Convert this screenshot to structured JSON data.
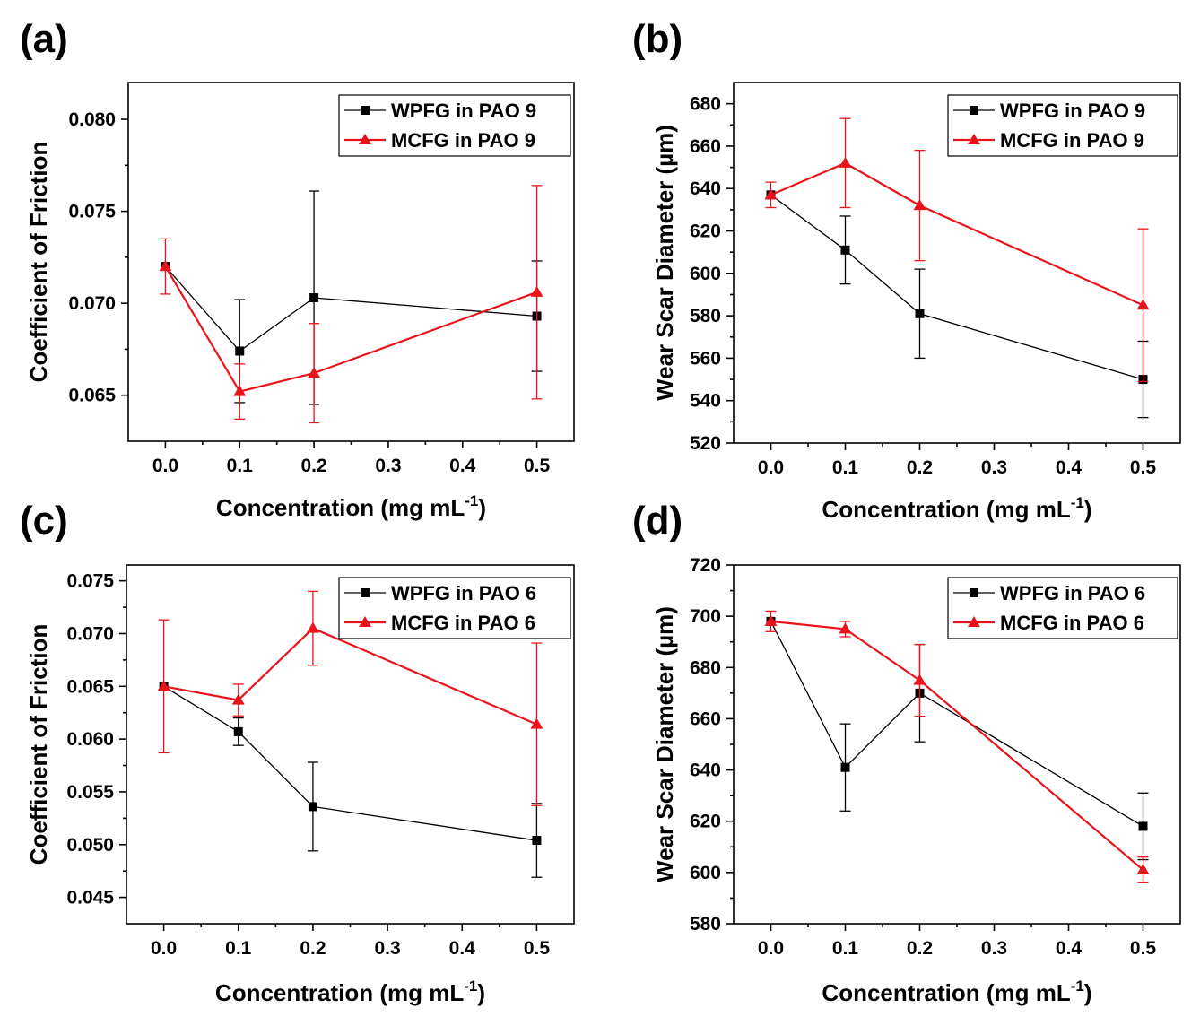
{
  "chart_data": [
    {
      "type": "line",
      "panel": "(a)",
      "xlabel": "Concentration (mg mL",
      "xlabel_sup": "-1",
      "xlabel_close": ")",
      "ylabel": "Coefficient of Friction",
      "xlim": [
        -0.05,
        0.55
      ],
      "ylim": [
        0.0625,
        0.082
      ],
      "xticks": [
        0.0,
        0.1,
        0.2,
        0.3,
        0.4,
        0.5
      ],
      "xtick_labels": [
        "0.0",
        "0.1",
        "0.2",
        "0.3",
        "0.4",
        "0.5"
      ],
      "yticks": [
        0.065,
        0.07,
        0.075,
        0.08
      ],
      "ytick_labels": [
        "0.065",
        "0.070",
        "0.075",
        "0.080"
      ],
      "legend_position": "top-right",
      "series": [
        {
          "name": "WPFG in PAO 9",
          "color": "#000000",
          "marker": "square",
          "x": [
            0.0,
            0.1,
            0.2,
            0.5
          ],
          "y": [
            0.072,
            0.0674,
            0.0703,
            0.0693
          ],
          "err": [
            0.0,
            0.0028,
            0.0058,
            0.003
          ]
        },
        {
          "name": "MCFG in PAO 9",
          "color": "#e8141b",
          "marker": "triangle",
          "x": [
            0.0,
            0.1,
            0.2,
            0.5
          ],
          "y": [
            0.072,
            0.0652,
            0.0662,
            0.0706
          ],
          "err": [
            0.0015,
            0.0015,
            0.0027,
            0.0058
          ]
        }
      ]
    },
    {
      "type": "line",
      "panel": "(b)",
      "xlabel": "Concentration (mg mL",
      "xlabel_sup": "-1",
      "xlabel_close": ")",
      "ylabel": "Wear Scar Diameter (µm)",
      "xlim": [
        -0.05,
        0.55
      ],
      "ylim": [
        520,
        690
      ],
      "xticks": [
        0.0,
        0.1,
        0.2,
        0.3,
        0.4,
        0.5
      ],
      "xtick_labels": [
        "0.0",
        "0.1",
        "0.2",
        "0.3",
        "0.4",
        "0.5"
      ],
      "yticks": [
        520,
        540,
        560,
        580,
        600,
        620,
        640,
        660,
        680
      ],
      "ytick_labels": [
        "520",
        "540",
        "560",
        "580",
        "600",
        "620",
        "640",
        "660",
        "680"
      ],
      "legend_position": "top-right",
      "series": [
        {
          "name": "WPFG in PAO 9",
          "color": "#000000",
          "marker": "square",
          "x": [
            0.0,
            0.1,
            0.2,
            0.5
          ],
          "y": [
            637,
            611,
            581,
            550
          ],
          "err": [
            0,
            16,
            21,
            18
          ]
        },
        {
          "name": "MCFG in PAO 9",
          "color": "#e8141b",
          "marker": "triangle",
          "x": [
            0.0,
            0.1,
            0.2,
            0.5
          ],
          "y": [
            637,
            652,
            632,
            585
          ],
          "err": [
            6,
            21,
            26,
            36
          ]
        }
      ]
    },
    {
      "type": "line",
      "panel": "(c)",
      "xlabel": "Concentration (mg mL",
      "xlabel_sup": "-1",
      "xlabel_close": ")",
      "ylabel": "Coefficient of Friction",
      "xlim": [
        -0.05,
        0.55
      ],
      "ylim": [
        0.0425,
        0.0765
      ],
      "xticks": [
        0.0,
        0.1,
        0.2,
        0.3,
        0.4,
        0.5
      ],
      "xtick_labels": [
        "0.0",
        "0.1",
        "0.2",
        "0.3",
        "0.4",
        "0.5"
      ],
      "yticks": [
        0.045,
        0.05,
        0.055,
        0.06,
        0.065,
        0.07,
        0.075
      ],
      "ytick_labels": [
        "0.045",
        "0.050",
        "0.055",
        "0.060",
        "0.065",
        "0.070",
        "0.075"
      ],
      "legend_position": "top-right",
      "series": [
        {
          "name": "WPFG in PAO 6",
          "color": "#000000",
          "marker": "square",
          "x": [
            0.0,
            0.1,
            0.2,
            0.5
          ],
          "y": [
            0.065,
            0.0607,
            0.0536,
            0.0504
          ],
          "err": [
            0.0,
            0.0013,
            0.0042,
            0.0035
          ]
        },
        {
          "name": "MCFG in PAO 6",
          "color": "#e8141b",
          "marker": "triangle",
          "x": [
            0.0,
            0.1,
            0.2,
            0.5
          ],
          "y": [
            0.065,
            0.0637,
            0.0705,
            0.0614
          ],
          "err": [
            0.0063,
            0.0015,
            0.0035,
            0.0077
          ]
        }
      ]
    },
    {
      "type": "line",
      "panel": "(d)",
      "xlabel": "Concentration (mg mL",
      "xlabel_sup": "-1",
      "xlabel_close": ")",
      "ylabel": "Wear Scar Diameter (µm)",
      "xlim": [
        -0.05,
        0.55
      ],
      "ylim": [
        580,
        720
      ],
      "xticks": [
        0.0,
        0.1,
        0.2,
        0.3,
        0.4,
        0.5
      ],
      "xtick_labels": [
        "0.0",
        "0.1",
        "0.2",
        "0.3",
        "0.4",
        "0.5"
      ],
      "yticks": [
        580,
        600,
        620,
        640,
        660,
        680,
        700,
        720
      ],
      "ytick_labels": [
        "580",
        "600",
        "620",
        "640",
        "660",
        "680",
        "700",
        "720"
      ],
      "legend_position": "top-right",
      "series": [
        {
          "name": "WPFG in PAO 6",
          "color": "#000000",
          "marker": "square",
          "x": [
            0.0,
            0.1,
            0.2,
            0.5
          ],
          "y": [
            698,
            641,
            670,
            618
          ],
          "err": [
            0,
            17,
            19,
            13
          ]
        },
        {
          "name": "MCFG in PAO 6",
          "color": "#e8141b",
          "marker": "triangle",
          "x": [
            0.0,
            0.1,
            0.2,
            0.5
          ],
          "y": [
            698,
            695,
            675,
            601
          ],
          "err": [
            4,
            3,
            14,
            5
          ]
        }
      ]
    }
  ]
}
